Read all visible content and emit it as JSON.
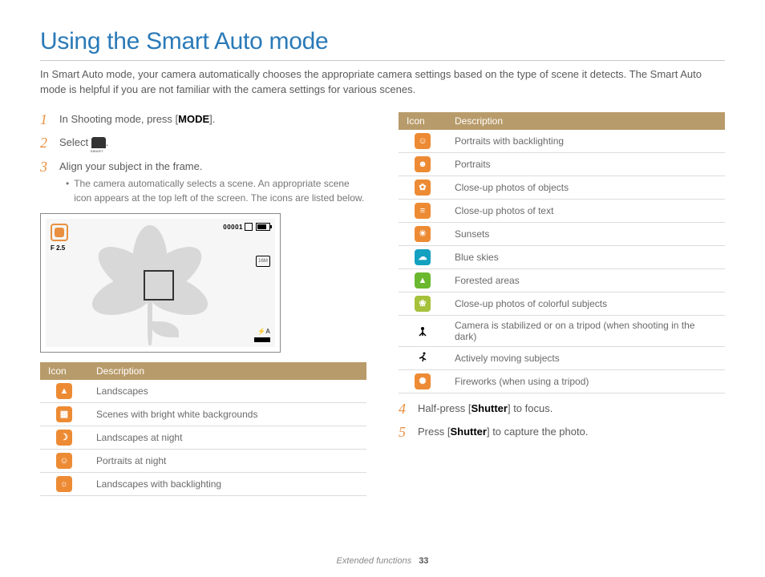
{
  "title": "Using the Smart Auto mode",
  "intro": "In Smart Auto mode, your camera automatically chooses the appropriate camera settings based on the type of scene it detects. The Smart Auto mode is helpful if you are not familiar with the camera settings for various scenes.",
  "steps": {
    "s1_pre": "In Shooting mode, press [",
    "s1_key": "MODE",
    "s1_post": "].",
    "s2_pre": "Select ",
    "s2_post": ".",
    "s3": "Align your subject in the frame.",
    "s3_note": "The camera automatically selects a scene. An appropriate scene icon appears at the top left of the screen. The icons are listed below.",
    "s4_pre": "Half-press [",
    "s4_key": "Shutter",
    "s4_post": "] to focus.",
    "s5_pre": "Press [",
    "s5_key": "Shutter",
    "s5_post": "] to capture the photo."
  },
  "screen": {
    "counter": "00001",
    "aperture": "F 2.5",
    "res": "16M",
    "flash_auto": "A"
  },
  "table_headers": {
    "icon": "Icon",
    "desc": "Description"
  },
  "colors": {
    "orange": "#ed8b34",
    "teal": "#14a0c0",
    "green": "#6ab82f",
    "lime": "#a6c13a",
    "black": "#000000"
  },
  "left_table": [
    {
      "glyph": "▲",
      "color": "orange",
      "desc": "Landscapes"
    },
    {
      "glyph": "▦",
      "color": "orange",
      "desc": "Scenes with bright white backgrounds"
    },
    {
      "glyph": "☽",
      "color": "orange",
      "desc": "Landscapes at night"
    },
    {
      "glyph": "☺",
      "color": "orange",
      "desc": "Portraits at night"
    },
    {
      "glyph": "☼",
      "color": "orange",
      "desc": "Landscapes with backlighting"
    }
  ],
  "right_table": [
    {
      "glyph": "☺",
      "color": "orange",
      "desc": "Portraits with backlighting"
    },
    {
      "glyph": "☻",
      "color": "orange",
      "desc": "Portraits"
    },
    {
      "glyph": "✿",
      "color": "orange",
      "desc": "Close-up photos of objects"
    },
    {
      "glyph": "≡",
      "color": "orange",
      "desc": "Close-up photos of text"
    },
    {
      "glyph": "☀",
      "color": "orange",
      "desc": "Sunsets"
    },
    {
      "glyph": "☁",
      "color": "teal",
      "desc": "Blue skies"
    },
    {
      "glyph": "▲",
      "color": "green",
      "desc": "Forested areas"
    },
    {
      "glyph": "❀",
      "color": "lime",
      "desc": "Close-up photos of colorful subjects"
    },
    {
      "glyph": "�базис",
      "raw": "⛿",
      "bw": true,
      "desc": "Camera is stabilized or on a tripod (when shooting in the dark)"
    },
    {
      "glyph": "✦",
      "bw": true,
      "desc": "Actively moving subjects"
    },
    {
      "glyph": "✺",
      "color": "orange",
      "desc": "Fireworks (when using a tripod)"
    }
  ],
  "footer": {
    "section": "Extended functions",
    "page": "33"
  }
}
